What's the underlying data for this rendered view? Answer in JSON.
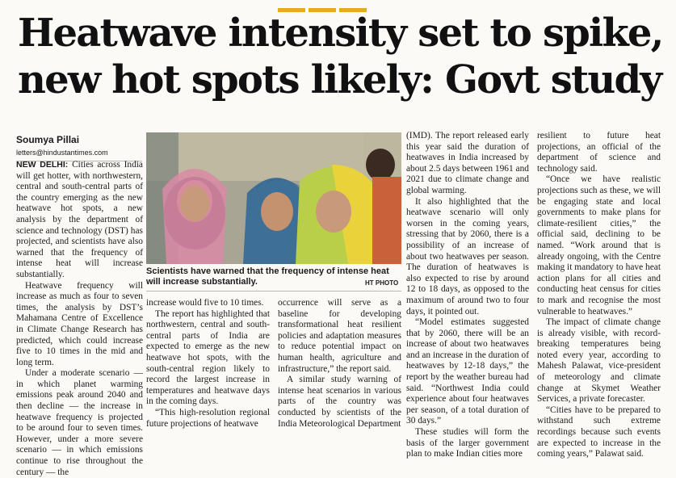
{
  "headline": {
    "line1": "Heatwave intensity set to spike,",
    "line2": "new hot spots likely: Govt study"
  },
  "byline": "Soumya Pillai",
  "email": "letters@hindustantimes.com",
  "photo": {
    "caption": "Scientists have warned that the frequency of intense heat will increase substantially.",
    "credit": "HT PHOTO"
  },
  "columns": {
    "c1": [
      "NEW DELHI:",
      "Cities across India will get hotter, with northwestern, central and south-central parts of the country emerging as the new heatwave hot spots, a new analysis by the department of science and technology (DST) has projected, and scientists have also warned that the frequency of intense heat will increase substantially.",
      "Heatwave frequency will increase as much as four to seven times, the analysis by DST’s Mahamana Centre of Excellence in Climate Change Research has predicted, which could increase five to 10 times in the mid and long term.",
      "Under a moderate scenario — in which planet warming emissions peak around 2040 and then decline — the increase in heatwave frequency is projected to be around four to seven times. However, under a more severe scenario — in which emissions continue to rise throughout the century — the"
    ],
    "c2": [
      "increase would five to 10 times.",
      "The report has highlighted that northwestern, central and south-central parts of India are expected to emerge as the new heatwave hot spots, with the south-central region likely to record the largest increase in temperatures and heatwave days in the coming days.",
      "“This high-resolution regional future projections of heatwave"
    ],
    "c3": [
      "occurrence will serve as a baseline for developing transformational heat resilient policies and adaptation measures to reduce potential impact on human health, agriculture and infrastructure,” the report said.",
      "A similar study warning of intense heat scenarios in various parts of the country was conducted by scientists of the India Meteorological Department"
    ],
    "c4": [
      "(IMD). The report released early this year said the duration of heatwaves in India increased by about 2.5 days between 1961 and 2021 due to climate change and global warming.",
      "It also highlighted that the heatwave scenario will only worsen in the coming years, stressing that by 2060, there is a possibility of an increase of about two heatwaves per season. The duration of heatwaves is also expected to rise by around 12 to 18 days, as opposed to the maximum of around two to four days, it pointed out.",
      "“Model estimates suggested that by 2060, there will be an increase of about two heatwaves and an increase in the duration of heatwaves by 12-18 days,” the report by the weather bureau had said. “Northwest India could experience about four heatwaves per season, of a total duration of 30 days.”",
      "These studies will form the basis of the larger government plan to make Indian cities more"
    ],
    "c5": [
      "resilient to future heat projections, an official of the department of science and technology said.",
      "“Once we have realistic projections such as these, we will be engaging state and local governments to make plans for climate-resilient cities,” the official said, declining to be named. “Work around that is already ongoing, with the Centre making it mandatory to have heat action plans for all cities and conducting heat census for cities to mark and recognise the most vulnerable to heatwaves.”",
      "The impact of climate change is already visible, with record-breaking temperatures being noted every year, according to Mahesh Palawat, vice-president of meteorology and climate change at Skymet Weather Services, a private forecaster.",
      "“Cities have to be prepared to withstand such extreme recordings because such events are expected to increase in the coming years,” Palawat said."
    ]
  },
  "colors": {
    "accent": "#e5ad1e",
    "text": "#1b1b1b"
  }
}
